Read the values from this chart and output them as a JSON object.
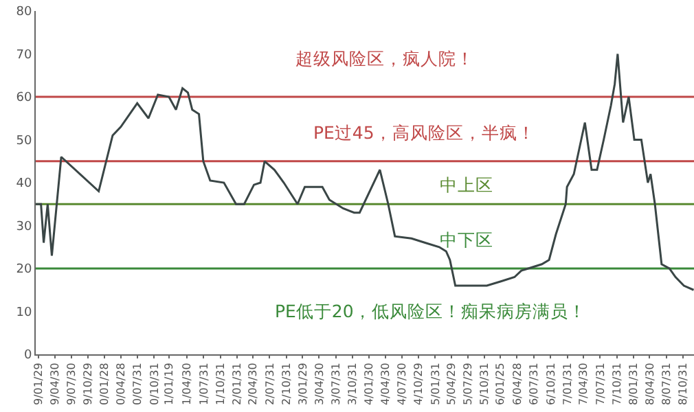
{
  "chart_data": {
    "type": "line",
    "x": [
      "1999-01-15",
      "1999-02-13",
      "1999-02-28",
      "1999-03-22",
      "1999-04-14",
      "1999-06-05",
      "1999-12-29",
      "2000-03-15",
      "2000-04-29",
      "2000-07-29",
      "2000-09-29",
      "2000-11-20",
      "2001-01-20",
      "2001-02-28",
      "2001-04-05",
      "2001-05-05",
      "2001-05-29",
      "2001-07-05",
      "2001-07-29",
      "2001-09-05",
      "2001-11-20",
      "2002-01-26",
      "2002-03-12",
      "2002-05-05",
      "2002-06-10",
      "2002-07-03",
      "2002-08-26",
      "2002-10-17",
      "2003-01-01",
      "2003-02-10",
      "2003-05-18",
      "2003-06-26",
      "2003-09-10",
      "2003-11-10",
      "2003-12-10",
      "2004-03-31",
      "2004-05-16",
      "2004-06-22",
      "2004-09-22",
      "2004-12-06",
      "2005-02-22",
      "2005-04-01",
      "2005-04-22",
      "2005-05-22",
      "2005-07-22",
      "2005-11-12",
      "2006-01-29",
      "2006-04-14",
      "2006-05-22",
      "2006-09-12",
      "2006-10-22",
      "2006-11-29",
      "2007-01-22",
      "2007-01-29",
      "2007-03-08",
      "2007-05-08",
      "2007-06-14",
      "2007-07-14",
      "2007-08-20",
      "2007-09-29",
      "2007-10-20",
      "2007-11-05",
      "2007-12-05",
      "2008-01-05",
      "2008-02-05",
      "2008-03-15",
      "2008-04-20",
      "2008-05-05",
      "2008-05-29",
      "2008-07-05",
      "2008-08-17",
      "2008-09-20",
      "2008-11-05",
      "2008-12-29"
    ],
    "series": [
      {
        "color": "#3a4646",
        "values": [
          35,
          35,
          26,
          35,
          23,
          46,
          38,
          51,
          53,
          58.5,
          55,
          60.5,
          60,
          57,
          62,
          61,
          57,
          56,
          45,
          40.5,
          40,
          35,
          35,
          39.5,
          40,
          45,
          43,
          40,
          35,
          39,
          39,
          36,
          34,
          33,
          33,
          43,
          35,
          27.5,
          27,
          26,
          25,
          24,
          22,
          16,
          16,
          16,
          17,
          18,
          19.5,
          21,
          22,
          28,
          35,
          39,
          42,
          54,
          43,
          43,
          50,
          58,
          63,
          70,
          54,
          60,
          50,
          50,
          40,
          42,
          35,
          21,
          20,
          18,
          16,
          15
        ]
      }
    ],
    "xlim": [
      "1999-01-15",
      "2008-12-31"
    ],
    "xticks": [
      {
        "value": "1999-01-29",
        "label": "9/01/29"
      },
      {
        "value": "1999-04-30",
        "label": "9/04/30"
      },
      {
        "value": "1999-07-30",
        "label": "9/07/30"
      },
      {
        "value": "1999-10-29",
        "label": "9/10/29"
      },
      {
        "value": "2000-01-28",
        "label": "0/01/28"
      },
      {
        "value": "2000-04-28",
        "label": "0/04/28"
      },
      {
        "value": "2000-07-31",
        "label": "0/07/31"
      },
      {
        "value": "2000-10-31",
        "label": "0/10/31"
      },
      {
        "value": "2001-01-19",
        "label": "1/01/19"
      },
      {
        "value": "2001-04-30",
        "label": "1/04/30"
      },
      {
        "value": "2001-07-31",
        "label": "1/07/31"
      },
      {
        "value": "2001-10-31",
        "label": "1/10/31"
      },
      {
        "value": "2002-01-31",
        "label": "2/01/31"
      },
      {
        "value": "2002-04-30",
        "label": "2/04/30"
      },
      {
        "value": "2002-07-31",
        "label": "2/07/31"
      },
      {
        "value": "2002-10-31",
        "label": "2/10/31"
      },
      {
        "value": "2003-01-29",
        "label": "3/01/29"
      },
      {
        "value": "2003-04-30",
        "label": "3/04/30"
      },
      {
        "value": "2003-07-31",
        "label": "3/07/31"
      },
      {
        "value": "2003-10-31",
        "label": "3/10/31"
      },
      {
        "value": "2004-01-30",
        "label": "4/01/30"
      },
      {
        "value": "2004-04-30",
        "label": "4/04/30"
      },
      {
        "value": "2004-07-30",
        "label": "4/07/30"
      },
      {
        "value": "2004-10-29",
        "label": "4/10/29"
      },
      {
        "value": "2005-01-31",
        "label": "5/01/31"
      },
      {
        "value": "2005-04-29",
        "label": "5/04/29"
      },
      {
        "value": "2005-07-29",
        "label": "5/07/29"
      },
      {
        "value": "2005-10-31",
        "label": "5/10/31"
      },
      {
        "value": "2006-01-25",
        "label": "6/01/25"
      },
      {
        "value": "2006-04-28",
        "label": "6/04/28"
      },
      {
        "value": "2006-07-31",
        "label": "6/07/31"
      },
      {
        "value": "2006-10-31",
        "label": "6/10/31"
      },
      {
        "value": "2007-01-31",
        "label": "7/01/31"
      },
      {
        "value": "2007-04-30",
        "label": "7/04/30"
      },
      {
        "value": "2007-07-31",
        "label": "7/07/31"
      },
      {
        "value": "2007-10-31",
        "label": "7/10/31"
      },
      {
        "value": "2008-01-31",
        "label": "8/01/31"
      },
      {
        "value": "2008-04-30",
        "label": "8/04/30"
      },
      {
        "value": "2008-07-31",
        "label": "8/07/31"
      },
      {
        "value": "2008-10-31",
        "label": "8/10/31"
      }
    ],
    "ylim": [
      0,
      80
    ],
    "yticks": [
      0,
      10,
      20,
      30,
      40,
      50,
      60,
      70,
      80
    ],
    "ref_lines": [
      {
        "axis": "y",
        "value": 60,
        "color": "#c04848",
        "label": "超级风险区，疯人院！"
      },
      {
        "axis": "y",
        "value": 45,
        "color": "#c04848",
        "label": "PE过45，高风险区，半疯！"
      },
      {
        "axis": "y",
        "value": 35,
        "color": "#5a8a30",
        "label": "中上区"
      },
      {
        "axis": "y",
        "value": 20,
        "color": "#3a8a3a",
        "label": "中下区"
      }
    ],
    "annotations": [
      "PE低于20，低风险区！痴呆病房满员！"
    ],
    "grid": false,
    "marker": "none",
    "line_style": "solid"
  }
}
